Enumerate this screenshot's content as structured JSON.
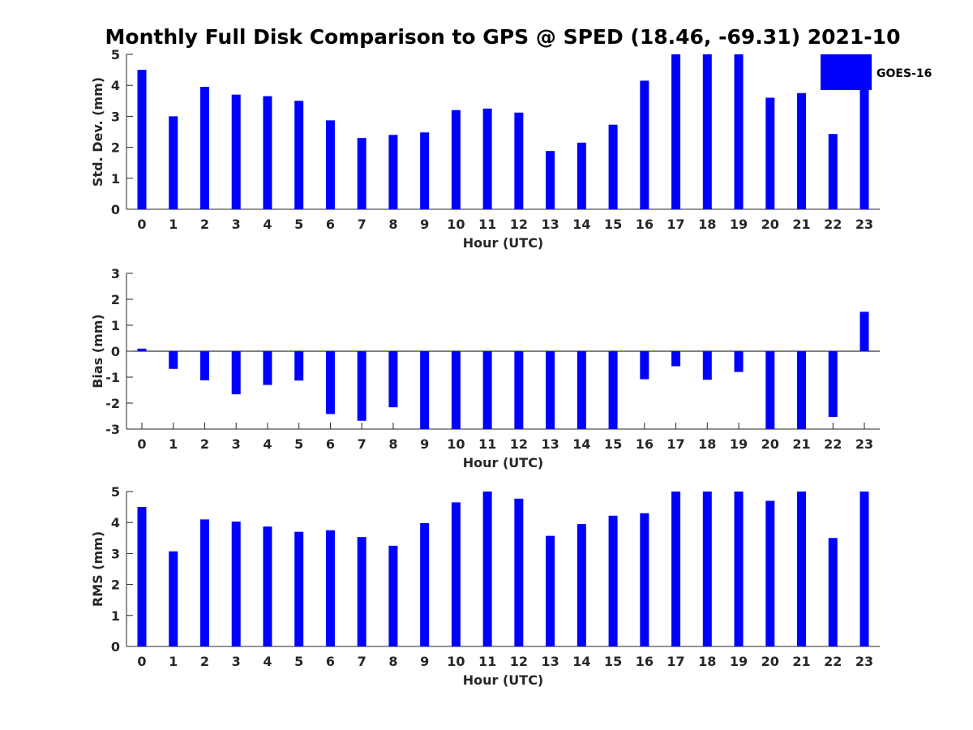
{
  "title": "Monthly Full Disk Comparison to GPS @ SPED (18.46, -69.31) 2021-10",
  "colors": {
    "bar": "#0000ff",
    "axis": "#262626",
    "background": "#ffffff"
  },
  "legend": {
    "label": "GOES-16",
    "placement": "top-right"
  },
  "chart_data": [
    {
      "type": "bar",
      "name": "std",
      "series_name": "GOES-16",
      "xlabel": "Hour (UTC)",
      "ylabel": "Std. Dev. (mm)",
      "ylim": [
        0,
        5
      ],
      "yticks": [
        0,
        1,
        2,
        3,
        4,
        5
      ],
      "categories": [
        "0",
        "1",
        "2",
        "3",
        "4",
        "5",
        "6",
        "7",
        "8",
        "9",
        "10",
        "11",
        "12",
        "13",
        "14",
        "15",
        "16",
        "17",
        "18",
        "19",
        "20",
        "21",
        "22",
        "23"
      ],
      "values": [
        4.5,
        3.0,
        3.95,
        3.7,
        3.65,
        3.5,
        2.87,
        2.3,
        2.4,
        2.48,
        3.2,
        3.25,
        3.12,
        1.88,
        2.15,
        2.73,
        4.15,
        5.0,
        5.0,
        5.0,
        3.6,
        3.75,
        2.43,
        5.0
      ]
    },
    {
      "type": "bar",
      "name": "bias",
      "series_name": "GOES-16",
      "xlabel": "Hour (UTC)",
      "ylabel": "Bias (mm)",
      "ylim": [
        -3,
        3
      ],
      "yticks": [
        -3,
        -2,
        -1,
        0,
        1,
        2,
        3
      ],
      "categories": [
        "0",
        "1",
        "2",
        "3",
        "4",
        "5",
        "6",
        "7",
        "8",
        "9",
        "10",
        "11",
        "12",
        "13",
        "14",
        "15",
        "16",
        "17",
        "18",
        "19",
        "20",
        "21",
        "22",
        "23"
      ],
      "values": [
        0.1,
        -0.68,
        -1.12,
        -1.66,
        -1.3,
        -1.13,
        -2.42,
        -2.68,
        -2.16,
        -3.0,
        -3.0,
        -3.0,
        -3.0,
        -3.0,
        -3.0,
        -3.0,
        -1.08,
        -0.58,
        -1.1,
        -0.8,
        -3.0,
        -3.0,
        -2.53,
        1.52
      ]
    },
    {
      "type": "bar",
      "name": "rms",
      "series_name": "GOES-16",
      "xlabel": "Hour (UTC)",
      "ylabel": "RMS (mm)",
      "ylim": [
        0,
        5
      ],
      "yticks": [
        0,
        1,
        2,
        3,
        4,
        5
      ],
      "categories": [
        "0",
        "1",
        "2",
        "3",
        "4",
        "5",
        "6",
        "7",
        "8",
        "9",
        "10",
        "11",
        "12",
        "13",
        "14",
        "15",
        "16",
        "17",
        "18",
        "19",
        "20",
        "21",
        "22",
        "23"
      ],
      "values": [
        4.5,
        3.07,
        4.1,
        4.03,
        3.87,
        3.7,
        3.75,
        3.53,
        3.25,
        3.98,
        4.65,
        5.0,
        4.77,
        3.57,
        3.95,
        4.22,
        4.3,
        5.0,
        5.0,
        5.0,
        4.7,
        5.0,
        3.5,
        5.0
      ]
    }
  ]
}
